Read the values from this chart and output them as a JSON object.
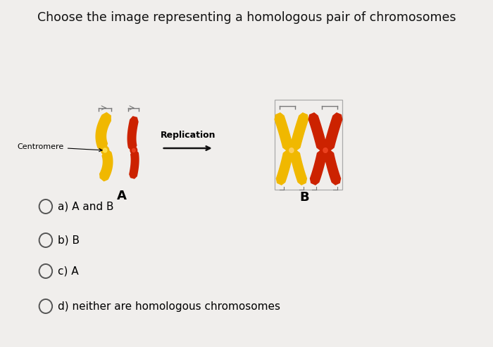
{
  "title": "Choose the image representing a homologous pair of chromosomes",
  "title_fontsize": 12.5,
  "background_color": "#f0eeec",
  "answer_options": [
    "a) A and B",
    "b) B",
    "c) A",
    "d) neither are homologous chromosomes"
  ],
  "centromere_label": "Centromere",
  "replication_label": "Replication",
  "label_A": "A",
  "label_B": "B",
  "yellow_color": "#F0B800",
  "yellow_dark": "#D09000",
  "red_color": "#CC2200",
  "red_dark": "#991500",
  "centromere_yellow": "#E8C000",
  "centromere_red": "#BB3300",
  "bracket_color": "#777777",
  "arrow_color": "#111111",
  "text_color": "#111111",
  "radio_color": "#555555"
}
